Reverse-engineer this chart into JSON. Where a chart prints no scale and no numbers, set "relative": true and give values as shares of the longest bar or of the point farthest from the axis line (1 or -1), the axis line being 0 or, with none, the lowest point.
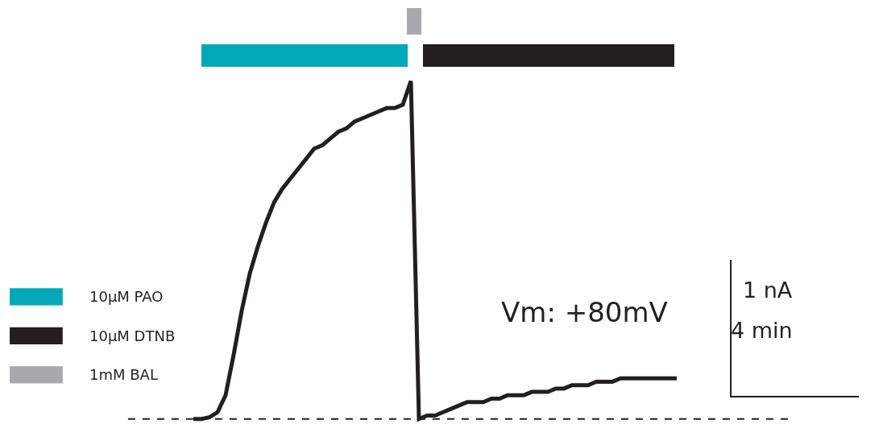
{
  "chart_data": {
    "type": "line",
    "relative": true,
    "categories": [
      null,
      null,
      null,
      null,
      null,
      null,
      null,
      null,
      null,
      null,
      null,
      null,
      null,
      null,
      null,
      null,
      null,
      null,
      null,
      null,
      null,
      null,
      null,
      null,
      null,
      null,
      null,
      null,
      null,
      null,
      null,
      null,
      null,
      null,
      null,
      null,
      null,
      null,
      null,
      null,
      null,
      null,
      null,
      null,
      null,
      null,
      null,
      null,
      null,
      null,
      null,
      null,
      null,
      null,
      null,
      null,
      null,
      null,
      null,
      null,
      null
    ],
    "series": [
      {
        "color": "#231f20",
        "values": [
          0,
          0,
          0.005,
          0.02,
          0.07,
          0.19,
          0.32,
          0.43,
          0.51,
          0.58,
          0.64,
          0.68,
          0.71,
          0.74,
          0.77,
          0.8,
          0.81,
          0.83,
          0.85,
          0.86,
          0.88,
          0.89,
          0.9,
          0.91,
          0.92,
          0.92,
          0.93,
          1,
          0,
          0.01,
          0.01,
          0.02,
          0.03,
          0.04,
          0.05,
          0.05,
          0.05,
          0.06,
          0.06,
          0.07,
          0.07,
          0.07,
          0.08,
          0.08,
          0.08,
          0.09,
          0.09,
          0.1,
          0.1,
          0.1,
          0.11,
          0.11,
          0.11,
          0.12,
          0.12,
          0.12,
          0.12,
          0.12,
          0.12,
          0.12,
          0.12
        ]
      }
    ],
    "ref_lines": [
      {
        "axis": "y",
        "value": 0,
        "color": "#231f20",
        "line_style": "dashed"
      }
    ],
    "annotations": [
      "Vm: +80mV",
      "1 nA",
      "4 min",
      "10µM PAO",
      "10µM DTNB",
      "1mM BAL"
    ]
  }
}
